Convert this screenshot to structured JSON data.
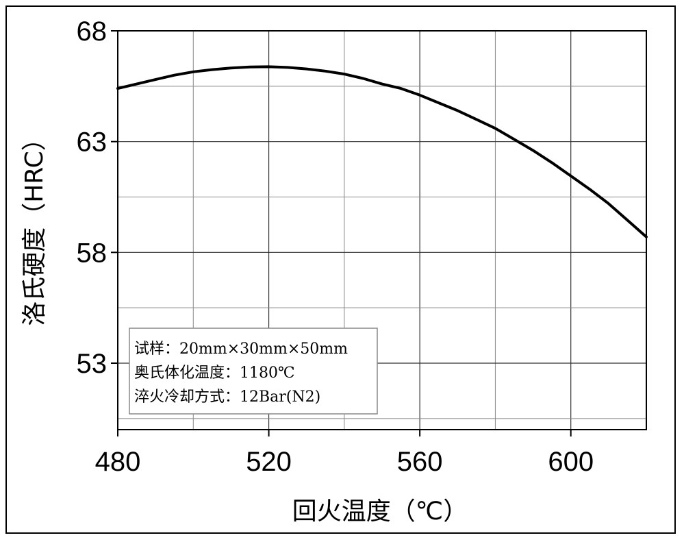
{
  "chart_data": {
    "type": "line",
    "title": "",
    "xlabel": "回火温度（℃）",
    "ylabel": "洛氏硬度（HRC）",
    "xlim": [
      480,
      620
    ],
    "ylim": [
      50,
      68
    ],
    "x_ticks": [
      480,
      520,
      560,
      600
    ],
    "y_ticks": [
      53,
      58,
      63,
      68
    ],
    "grid": true,
    "legend": "none",
    "line_color": "#000000",
    "series": [
      {
        "name": "",
        "x": [
          480,
          485,
          490,
          495,
          500,
          505,
          510,
          515,
          520,
          525,
          530,
          535,
          540,
          545,
          550,
          555,
          560,
          565,
          570,
          575,
          580,
          585,
          590,
          595,
          600,
          605,
          610,
          615,
          620
        ],
        "y": [
          65.4,
          65.6,
          65.8,
          66.0,
          66.15,
          66.25,
          66.32,
          66.37,
          66.38,
          66.35,
          66.28,
          66.18,
          66.05,
          65.85,
          65.6,
          65.4,
          65.1,
          64.75,
          64.4,
          64.0,
          63.6,
          63.1,
          62.6,
          62.05,
          61.45,
          60.85,
          60.2,
          59.45,
          58.7
        ]
      }
    ],
    "annotations": [
      "试样：20mm×30mm×50mm",
      "奥氏体化温度：1180℃",
      "淬火冷却方式：12Bar(N2)"
    ]
  }
}
